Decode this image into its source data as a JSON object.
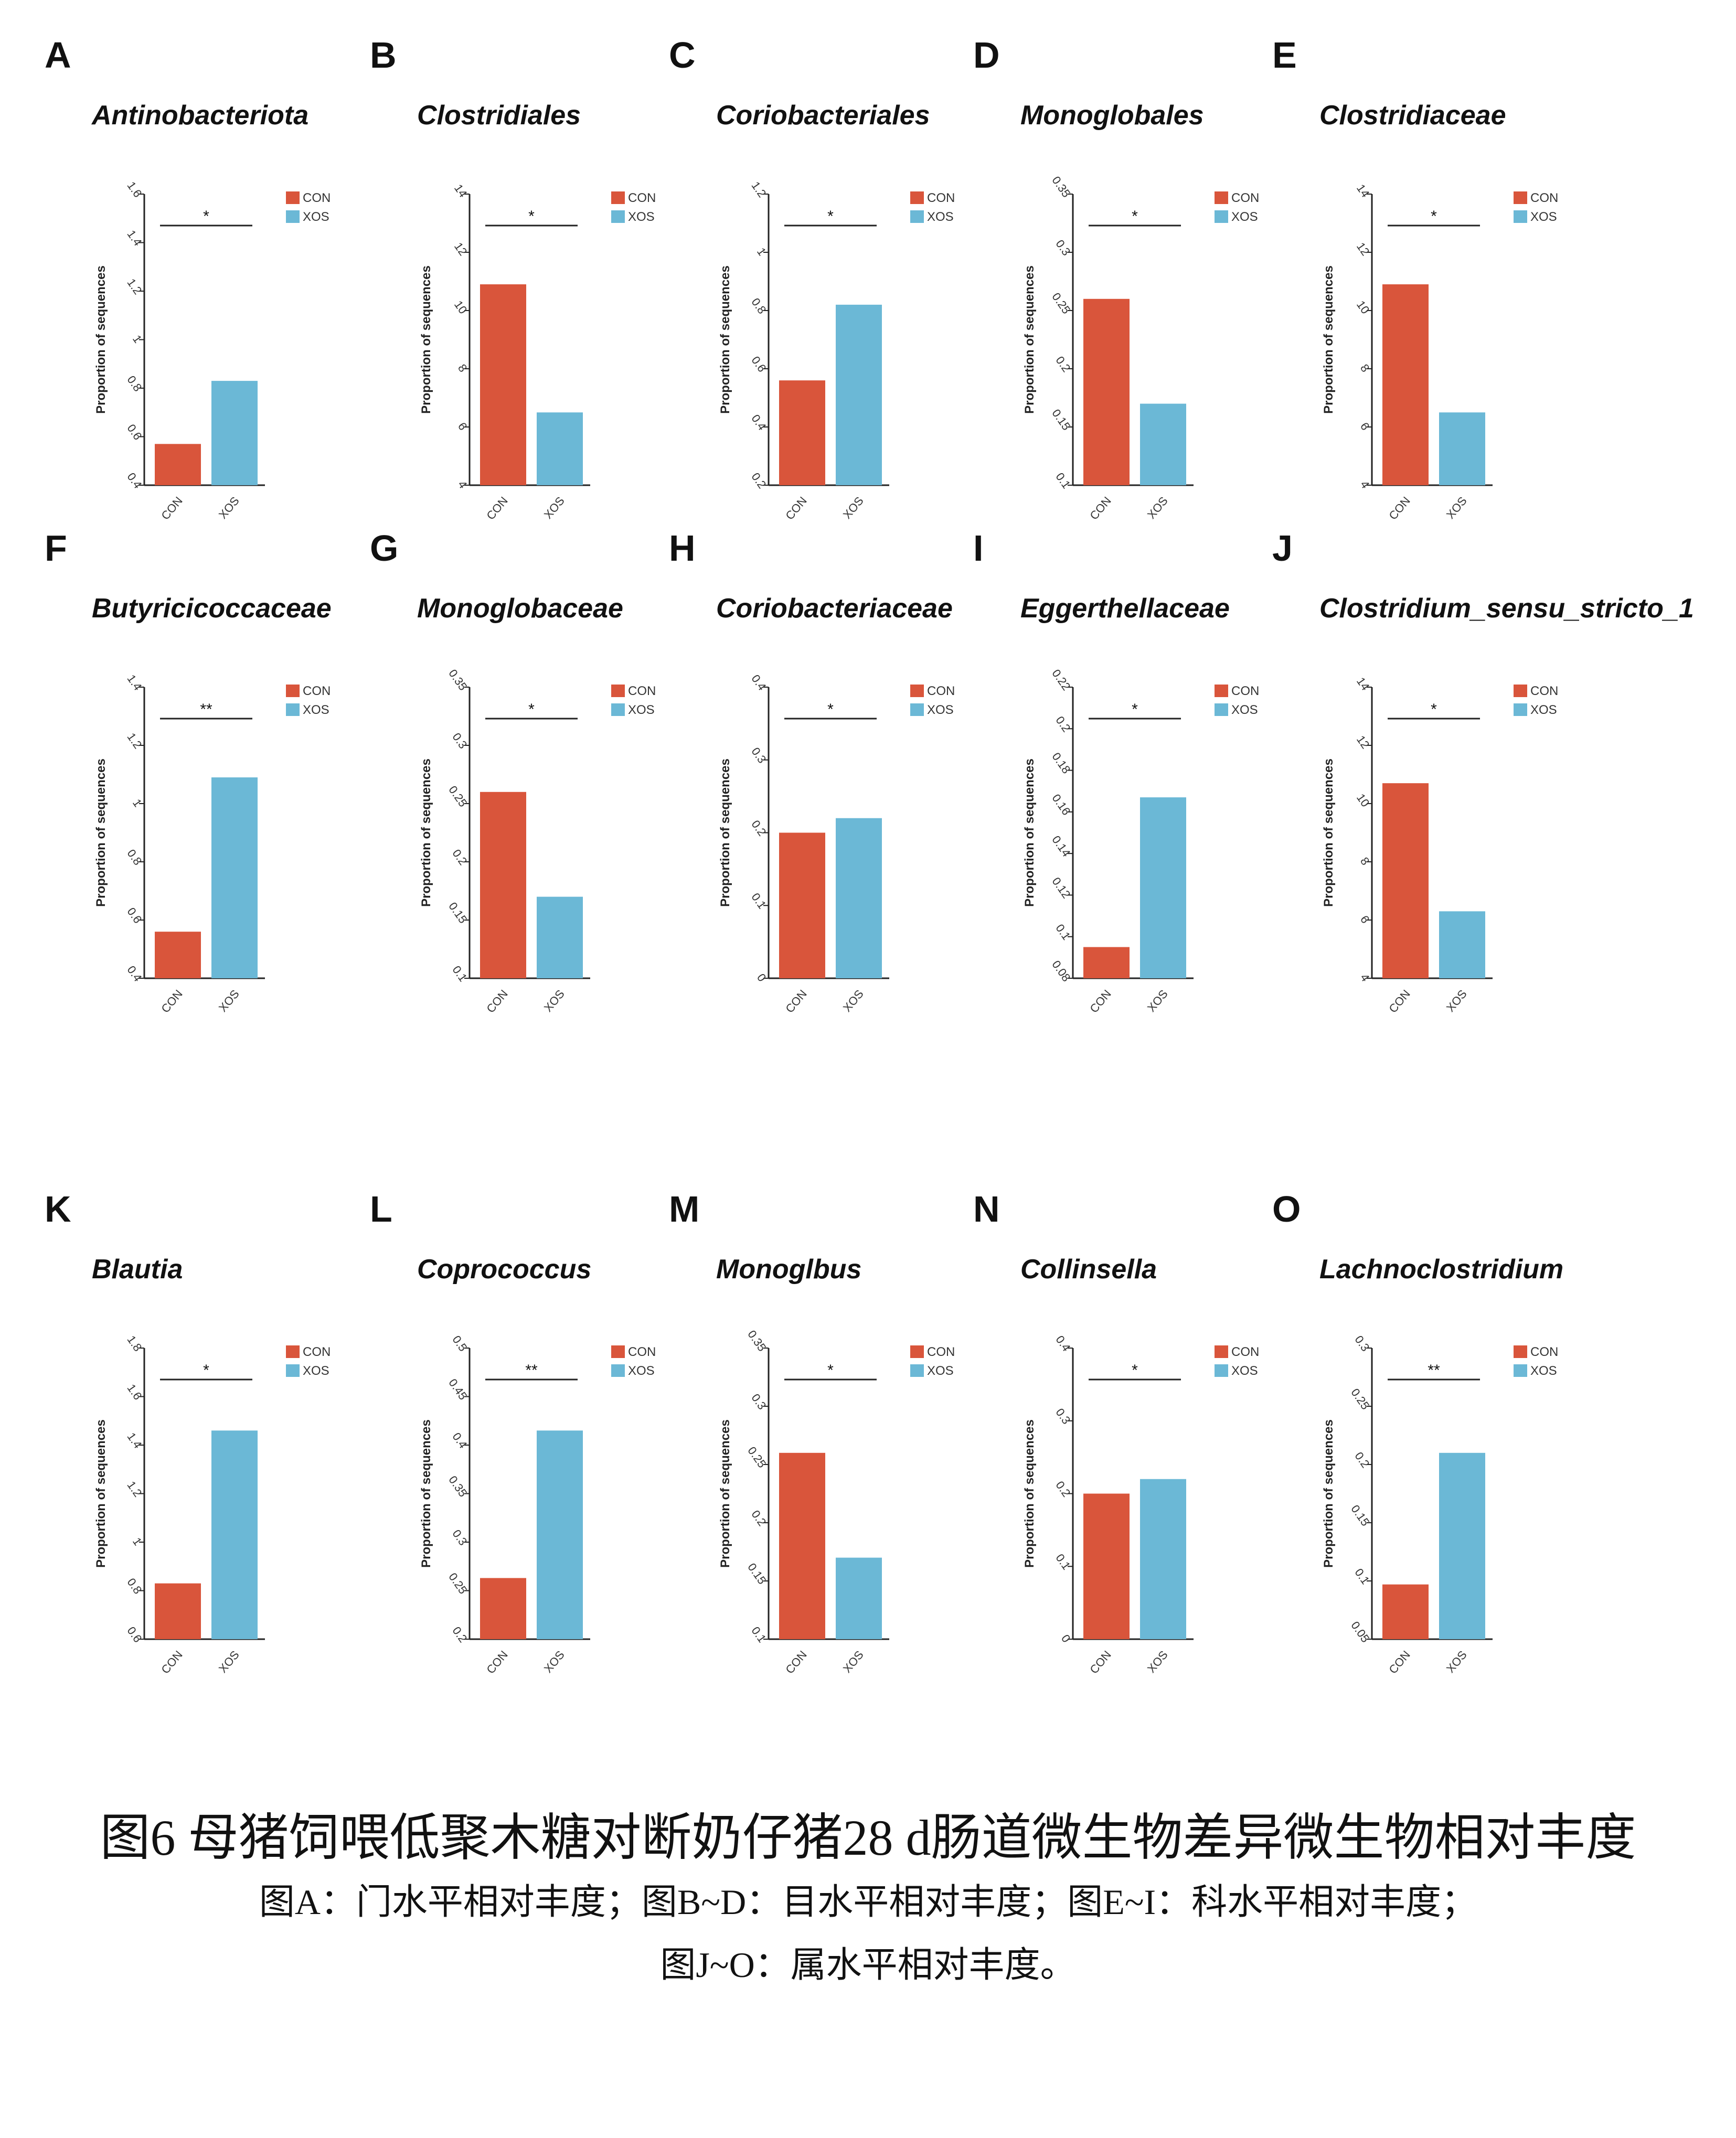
{
  "figure": {
    "caption_main": "图6 母猪饲喂低聚木糖对断奶仔猪28 d肠道微生物差异微生物相对丰度",
    "caption_sub1": "图A：门水平相对丰度；图B~D：目水平相对丰度；图E~I：科水平相对丰度；",
    "caption_sub2": "图J~O：属水平相对丰度。"
  },
  "colors": {
    "CON": "#d9553b",
    "XOS": "#6bb8d6",
    "axis": "#222222"
  },
  "chart_data": [
    {
      "letter": "A",
      "type": "bar",
      "title": "Antinobacteriota",
      "ylabel": "Proportion of sequences",
      "categories": [
        "CON",
        "XOS"
      ],
      "values": [
        0.57,
        0.83
      ],
      "ylim": [
        0.4,
        1.6
      ],
      "yticks": [
        "0.4",
        "0.6",
        "0.8",
        "1",
        "1.2",
        "1.4",
        "1.6"
      ],
      "significance": "*",
      "legend": [
        "CON",
        "XOS"
      ],
      "legend_position": "top-right"
    },
    {
      "letter": "B",
      "type": "bar",
      "title": "Clostridiales",
      "ylabel": "Proportion of sequences",
      "categories": [
        "CON",
        "XOS"
      ],
      "values": [
        10.9,
        6.5
      ],
      "ylim": [
        4,
        14
      ],
      "yticks": [
        "4",
        "6",
        "8",
        "10",
        "12",
        "14"
      ],
      "significance": "*",
      "legend": [
        "CON",
        "XOS"
      ],
      "legend_position": "top-right"
    },
    {
      "letter": "C",
      "type": "bar",
      "title": "Coriobacteriales",
      "ylabel": "Proportion of sequences",
      "categories": [
        "CON",
        "XOS"
      ],
      "values": [
        0.56,
        0.82
      ],
      "ylim": [
        0.2,
        1.2
      ],
      "yticks": [
        "0.2",
        "0.4",
        "0.6",
        "0.8",
        "1",
        "1.2"
      ],
      "significance": "*",
      "legend": [
        "CON",
        "XOS"
      ],
      "legend_position": "top-right"
    },
    {
      "letter": "D",
      "type": "bar",
      "title": "Monoglobales",
      "ylabel": "Proportion of sequences",
      "categories": [
        "CON",
        "XOS"
      ],
      "values": [
        0.26,
        0.17
      ],
      "ylim": [
        0.1,
        0.35
      ],
      "yticks": [
        "0.1",
        "0.15",
        "0.2",
        "0.25",
        "0.3",
        "0.35"
      ],
      "significance": "*",
      "legend": [
        "CON",
        "XOS"
      ],
      "legend_position": "top-right"
    },
    {
      "letter": "E",
      "type": "bar",
      "title": "Clostridiaceae",
      "ylabel": "Proportion of sequences",
      "categories": [
        "CON",
        "XOS"
      ],
      "values": [
        10.9,
        6.5
      ],
      "ylim": [
        4,
        14
      ],
      "yticks": [
        "4",
        "6",
        "8",
        "10",
        "12",
        "14"
      ],
      "significance": "*",
      "legend": [
        "CON",
        "XOS"
      ],
      "legend_position": "top-right"
    },
    {
      "letter": "F",
      "type": "bar",
      "title": "Butyricicoccaceae",
      "ylabel": "Proportion of sequences",
      "categories": [
        "CON",
        "XOS"
      ],
      "values": [
        0.56,
        1.09
      ],
      "ylim": [
        0.4,
        1.4
      ],
      "yticks": [
        "0.4",
        "0.6",
        "0.8",
        "1",
        "1.2",
        "1.4"
      ],
      "significance": "**",
      "legend": [
        "CON",
        "XOS"
      ],
      "legend_position": "top-right"
    },
    {
      "letter": "G",
      "type": "bar",
      "title": "Monoglobaceae",
      "ylabel": "Proportion of sequences",
      "categories": [
        "CON",
        "XOS"
      ],
      "values": [
        0.26,
        0.17
      ],
      "ylim": [
        0.1,
        0.35
      ],
      "yticks": [
        "0.1",
        "0.15",
        "0.2",
        "0.25",
        "0.3",
        "0.35"
      ],
      "significance": "*",
      "legend": [
        "CON",
        "XOS"
      ],
      "legend_position": "top-right"
    },
    {
      "letter": "H",
      "type": "bar",
      "title": "Coriobacteriaceae",
      "ylabel": "Proportion of sequences",
      "categories": [
        "CON",
        "XOS"
      ],
      "values": [
        0.2,
        0.22
      ],
      "ylim": [
        0,
        0.4
      ],
      "yticks": [
        "0",
        "0.1",
        "0.2",
        "0.3",
        "0.4"
      ],
      "significance": "*",
      "legend": [
        "CON",
        "XOS"
      ],
      "legend_position": "top-right"
    },
    {
      "letter": "I",
      "type": "bar",
      "title": "Eggerthellaceae",
      "ylabel": "Proportion of sequences",
      "categories": [
        "CON",
        "XOS"
      ],
      "values": [
        0.095,
        0.167
      ],
      "ylim": [
        0.08,
        0.22
      ],
      "yticks": [
        "0.08",
        "0.1",
        "0.12",
        "0.14",
        "0.16",
        "0.18",
        "0.2",
        "0.22"
      ],
      "significance": "*",
      "legend": [
        "CON",
        "XOS"
      ],
      "legend_position": "top-right"
    },
    {
      "letter": "J",
      "type": "bar",
      "title": "Clostridium_sensu_stricto_1",
      "ylabel": "Proportion of sequences",
      "categories": [
        "CON",
        "XOS"
      ],
      "values": [
        10.7,
        6.3
      ],
      "ylim": [
        4,
        14
      ],
      "yticks": [
        "4",
        "6",
        "8",
        "10",
        "12",
        "14"
      ],
      "significance": "*",
      "legend": [
        "CON",
        "XOS"
      ],
      "legend_position": "top-right"
    },
    {
      "letter": "K",
      "type": "bar",
      "title": "Blautia",
      "ylabel": "Proportion of sequences",
      "categories": [
        "CON",
        "XOS"
      ],
      "values": [
        0.83,
        1.46
      ],
      "ylim": [
        0.6,
        1.8
      ],
      "yticks": [
        "0.6",
        "0.8",
        "1",
        "1.2",
        "1.4",
        "1.6",
        "1.8"
      ],
      "significance": "*",
      "legend": [
        "CON",
        "XOS"
      ],
      "legend_position": "top-right"
    },
    {
      "letter": "L",
      "type": "bar",
      "title": "Coprococcus",
      "ylabel": "Proportion of sequences",
      "categories": [
        "CON",
        "XOS"
      ],
      "values": [
        0.263,
        0.415
      ],
      "ylim": [
        0.2,
        0.5
      ],
      "yticks": [
        "0.2",
        "0.25",
        "0.3",
        "0.35",
        "0.4",
        "0.45",
        "0.5"
      ],
      "significance": "**",
      "legend": [
        "CON",
        "XOS"
      ],
      "legend_position": "top-right"
    },
    {
      "letter": "M",
      "type": "bar",
      "title": "Monoglbus",
      "ylabel": "Proportion of sequences",
      "categories": [
        "CON",
        "XOS"
      ],
      "values": [
        0.26,
        0.17
      ],
      "ylim": [
        0.1,
        0.35
      ],
      "yticks": [
        "0.1",
        "0.15",
        "0.2",
        "0.25",
        "0.3",
        "0.35"
      ],
      "significance": "*",
      "legend": [
        "CON",
        "XOS"
      ],
      "legend_position": "top-right"
    },
    {
      "letter": "N",
      "type": "bar",
      "title": "Collinsella",
      "ylabel": "Proportion of sequences",
      "categories": [
        "CON",
        "XOS"
      ],
      "values": [
        0.2,
        0.22
      ],
      "ylim": [
        0,
        0.4
      ],
      "yticks": [
        "0",
        "0.1",
        "0.2",
        "0.3",
        "0.4"
      ],
      "significance": "*",
      "legend": [
        "CON",
        "XOS"
      ],
      "legend_position": "top-right"
    },
    {
      "letter": "O",
      "type": "bar",
      "title": "Lachnoclostridium",
      "ylabel": "Proportion of sequences",
      "categories": [
        "CON",
        "XOS"
      ],
      "values": [
        0.097,
        0.21
      ],
      "ylim": [
        0.05,
        0.3
      ],
      "yticks": [
        "0.05",
        "0.1",
        "0.15",
        "0.2",
        "0.25",
        "0.3"
      ],
      "significance": "**",
      "legend": [
        "CON",
        "XOS"
      ],
      "legend_position": "top-right"
    }
  ]
}
